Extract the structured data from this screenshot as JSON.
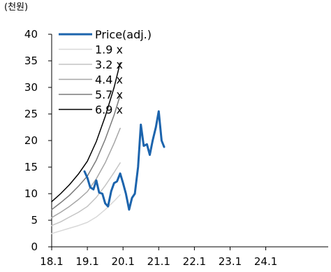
{
  "chart_data": {
    "type": "line",
    "unit_label": "(천원)",
    "ylim": [
      0,
      40
    ],
    "y_ticks": [
      0,
      5,
      10,
      15,
      20,
      25,
      30,
      35,
      40
    ],
    "x_range": [
      2018.0,
      2025.75
    ],
    "x_ticks": [
      {
        "label": "18.1",
        "x": 2018.0
      },
      {
        "label": "19.1",
        "x": 2019.0
      },
      {
        "label": "20.1",
        "x": 2020.0
      },
      {
        "label": "21.1",
        "x": 2021.0
      },
      {
        "label": "22.1",
        "x": 2022.0
      },
      {
        "label": "23.1",
        "x": 2023.0
      },
      {
        "label": "24.1",
        "x": 2024.0
      }
    ],
    "grid": false,
    "legend_position": "top-left",
    "series": [
      {
        "name": "Price(adj.)",
        "color": "#1c64ad",
        "width": 3,
        "x": [
          2018.92,
          2019.0,
          2019.08,
          2019.17,
          2019.25,
          2019.33,
          2019.42,
          2019.5,
          2019.58,
          2019.67,
          2019.75,
          2019.83,
          2019.92,
          2020.0,
          2020.08,
          2020.17,
          2020.25,
          2020.33,
          2020.42,
          2020.5,
          2020.58,
          2020.67,
          2020.75,
          2020.83,
          2020.92,
          2021.0,
          2021.08,
          2021.15
        ],
        "y": [
          14.2,
          13.0,
          11.2,
          10.8,
          12.5,
          10.2,
          10.0,
          8.2,
          7.6,
          10.5,
          12.0,
          12.3,
          13.8,
          12.0,
          10.0,
          7.0,
          9.2,
          10.0,
          15.0,
          23.0,
          19.0,
          19.3,
          17.3,
          20.0,
          22.5,
          25.5,
          20.0,
          18.8
        ]
      },
      {
        "name": "1.9 x",
        "color": "#d8d8d8",
        "width": 1.5,
        "x": [
          2018.0,
          2018.25,
          2018.5,
          2018.75,
          2019.0,
          2019.25,
          2019.5,
          2019.75,
          2019.92
        ],
        "y": [
          2.5,
          3.0,
          3.5,
          4.0,
          4.6,
          5.6,
          7.0,
          8.6,
          9.8
        ]
      },
      {
        "name": "3.2 x",
        "color": "#c4c4c4",
        "width": 1.5,
        "x": [
          2018.0,
          2018.25,
          2018.5,
          2018.75,
          2019.0,
          2019.25,
          2019.5,
          2019.75,
          2019.92
        ],
        "y": [
          4.0,
          4.7,
          5.6,
          6.5,
          7.6,
          9.3,
          11.5,
          14.0,
          15.8
        ]
      },
      {
        "name": "4.4 x",
        "color": "#a6a6a6",
        "width": 1.5,
        "x": [
          2018.0,
          2018.25,
          2018.5,
          2018.75,
          2019.0,
          2019.25,
          2019.5,
          2019.75,
          2019.92
        ],
        "y": [
          5.5,
          6.5,
          7.6,
          8.9,
          10.4,
          12.8,
          15.8,
          19.5,
          22.3
        ]
      },
      {
        "name": "5.7 x",
        "color": "#7a7a7a",
        "width": 1.5,
        "x": [
          2018.0,
          2018.25,
          2018.5,
          2018.75,
          2019.0,
          2019.25,
          2019.5,
          2019.75,
          2019.92
        ],
        "y": [
          7.0,
          8.3,
          9.7,
          11.4,
          13.3,
          16.3,
          20.2,
          24.8,
          28.5
        ]
      },
      {
        "name": "6.9 x",
        "color": "#000000",
        "width": 1.5,
        "x": [
          2018.0,
          2018.25,
          2018.5,
          2018.75,
          2019.0,
          2019.25,
          2019.5,
          2019.75,
          2019.92
        ],
        "y": [
          8.5,
          10.0,
          11.7,
          13.7,
          16.1,
          19.8,
          24.5,
          30.0,
          34.6
        ]
      }
    ]
  }
}
